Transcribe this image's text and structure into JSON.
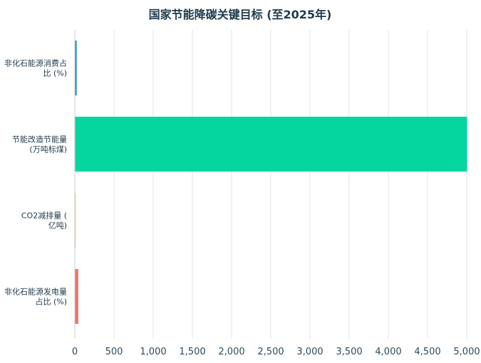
{
  "chart_data": {
    "type": "bar",
    "orientation": "horizontal",
    "title": "国家节能降碳关键目标 (至2025年)",
    "categories": [
      "非化石能源消费占比 (%)",
      "节能改造节能量 (万吨标煤)",
      "CO2减排量 (亿吨)",
      "非化石能源发电量占比 (%)"
    ],
    "category_lines": [
      [
        "非化石能源消费占",
        "比 (%)"
      ],
      [
        "节能改造节能量",
        "(万吨标煤)"
      ],
      [
        "CO2减排量 (",
        "亿吨)"
      ],
      [
        "非化石能源发电量",
        "占比 (%)"
      ]
    ],
    "values": [
      20,
      5000,
      5.3,
      39
    ],
    "colors": [
      "#2f8fbf",
      "#05d6a0",
      "#f2b134",
      "#f07167"
    ],
    "xlim": [
      0,
      5000
    ],
    "xticks": [
      0,
      500,
      1000,
      1500,
      2000,
      2500,
      3000,
      3500,
      4000,
      4500,
      5000
    ],
    "xtick_labels": [
      "0",
      "500",
      "1,000",
      "1,500",
      "2,000",
      "2,500",
      "3,000",
      "3,500",
      "4,000",
      "4,500",
      "5,000"
    ],
    "grid": true,
    "legend": "none"
  }
}
